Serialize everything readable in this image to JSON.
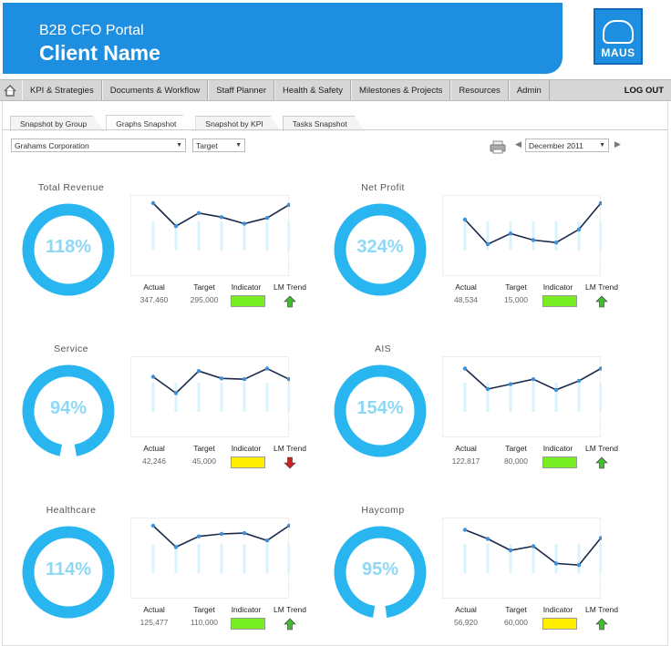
{
  "header": {
    "portal_title": "B2B CFO Portal",
    "client_name": "Client Name",
    "logo_text": "MAUS",
    "banner_color": "#1e8ee0"
  },
  "nav": {
    "items": [
      {
        "label": "KPI & Strategies"
      },
      {
        "label": "Documents & Workflow"
      },
      {
        "label": "Staff Planner"
      },
      {
        "label": "Health & Safety"
      },
      {
        "label": "Milestones & Projects"
      },
      {
        "label": "Resources"
      },
      {
        "label": "Admin"
      }
    ],
    "logout_label": "LOG OUT"
  },
  "tabs": [
    {
      "label": "Snapshot by Group"
    },
    {
      "label": "Graphs Snapshot",
      "active": true
    },
    {
      "label": "Snapshot by KPI"
    },
    {
      "label": "Tasks Snapshot"
    }
  ],
  "filters": {
    "company": "Grahams Corporation",
    "measure": "Target",
    "period": "December 2011"
  },
  "metric_headers": {
    "actual": "Actual",
    "target": "Target",
    "indicator": "Indicator",
    "trend": "LM Trend"
  },
  "colors": {
    "ring": "#29b6f0",
    "ring_text": "#8fd8f5",
    "indicator_green": "#77ee22",
    "indicator_yellow": "#ffee00",
    "trend_up": "#44bb33",
    "trend_down": "#cc2222"
  },
  "kpis": [
    {
      "title": "Total Revenue",
      "percent_label": "118%",
      "ring_fill": 1.0,
      "actual": "347,460",
      "target": "295,000",
      "indicator": "green",
      "trend": "up",
      "trend_icon": "up-arrow-icon",
      "series": [
        8,
        5.2,
        6.8,
        6.3,
        5.5,
        6.2,
        7.8
      ]
    },
    {
      "title": "Net Profit",
      "percent_label": "324%",
      "ring_fill": 1.0,
      "actual": "48,534",
      "target": "15,000",
      "indicator": "green",
      "trend": "up",
      "trend_icon": "up-arrow-icon",
      "series": [
        6,
        3,
        4.3,
        3.5,
        3.2,
        4.8,
        8
      ]
    },
    {
      "title": "Service",
      "percent_label": "94%",
      "ring_fill": 0.94,
      "actual": "42,246",
      "target": "45,000",
      "indicator": "yellow",
      "trend": "down",
      "trend_icon": "down-arrow-icon",
      "series": [
        6.5,
        4.5,
        7.2,
        6.3,
        6.2,
        7.5,
        6.2
      ]
    },
    {
      "title": "AIS",
      "percent_label": "154%",
      "ring_fill": 1.0,
      "actual": "122,817",
      "target": "80,000",
      "indicator": "green",
      "trend": "up",
      "trend_icon": "up-arrow-icon",
      "series": [
        7.5,
        5,
        5.6,
        6.2,
        4.9,
        6,
        7.5
      ]
    },
    {
      "title": "Healthcare",
      "percent_label": "114%",
      "ring_fill": 1.0,
      "actual": "125,477",
      "target": "110,000",
      "indicator": "green",
      "trend": "up",
      "trend_icon": "up-arrow-icon",
      "series": [
        8,
        5.4,
        6.7,
        7,
        7.1,
        6.2,
        8
      ]
    },
    {
      "title": "Haycomp",
      "percent_label": "95%",
      "ring_fill": 0.95,
      "actual": "56,920",
      "target": "60,000",
      "indicator": "yellow",
      "trend": "up",
      "trend_icon": "up-arrow-icon",
      "series": [
        7.5,
        6.4,
        5,
        5.5,
        3.4,
        3.2,
        6.5
      ]
    }
  ]
}
